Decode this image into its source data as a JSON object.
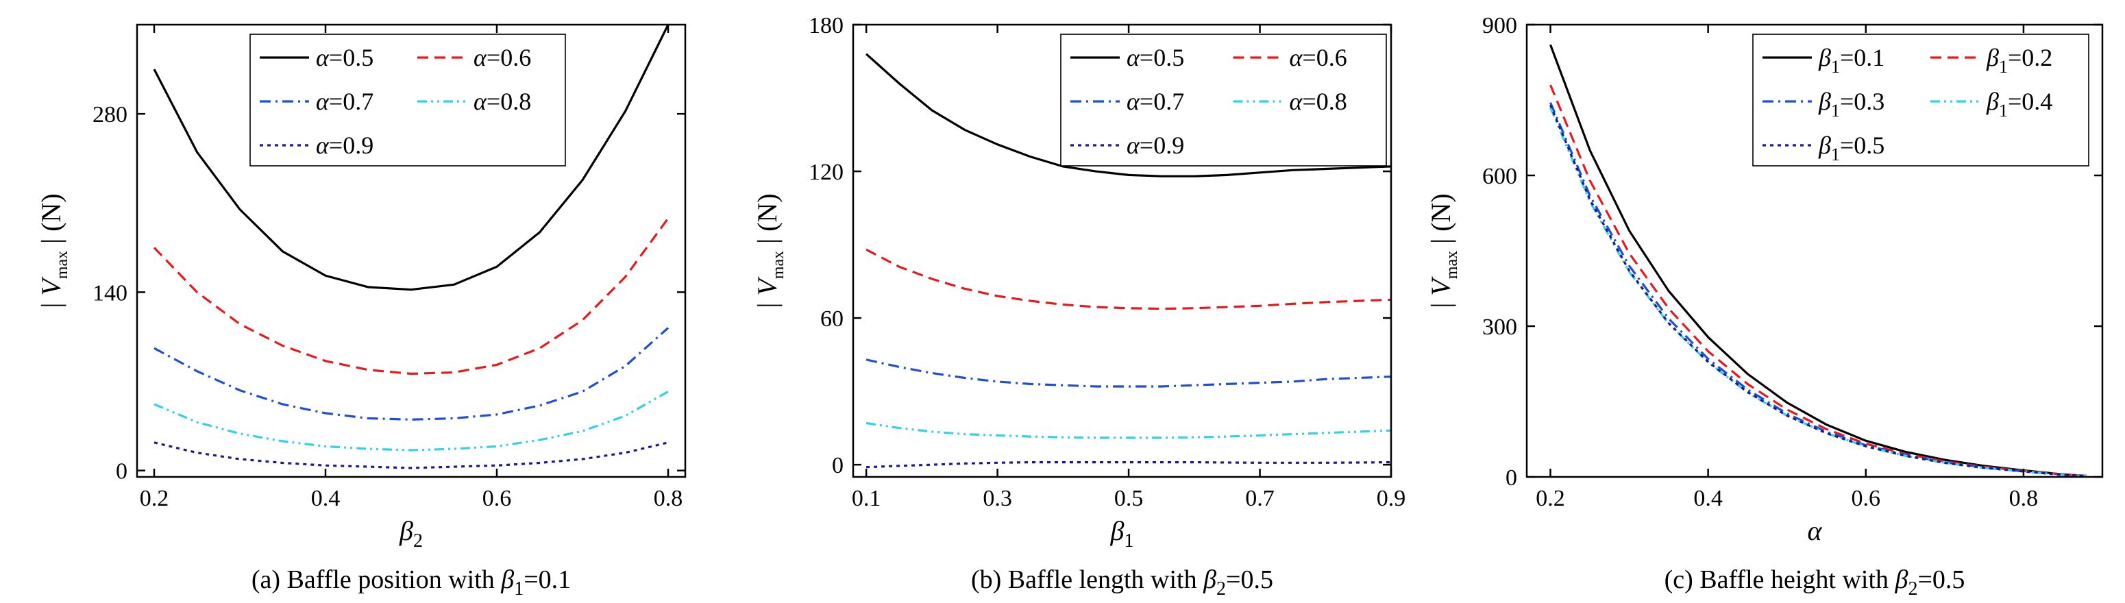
{
  "chart_data": [
    {
      "type": "line",
      "caption": {
        "prefix": "(a) Baffle position with ",
        "sym": "β",
        "sub": "1",
        "suffix": "=0.1"
      },
      "ylabel": {
        "pre": "| ",
        "sym": "V",
        "sub": "max",
        "post": " | (N)"
      },
      "xlabel": {
        "sym": "β",
        "sub": "2"
      },
      "xlim": [
        0.18,
        0.82
      ],
      "ylim": [
        -5,
        350
      ],
      "xticks": [
        0.2,
        0.4,
        0.6,
        0.8
      ],
      "xtick_labels": [
        "0.2",
        "0.4",
        "0.6",
        "0.8"
      ],
      "yticks": [
        0,
        140,
        280
      ],
      "ytick_labels": [
        "0",
        "140",
        "280"
      ],
      "legend": {
        "placement": "top-right",
        "columns": 2
      },
      "series": [
        {
          "name": {
            "sym": "α",
            "eq": "=0.5"
          },
          "color": "#000000",
          "dash": "solid",
          "x": [
            0.2,
            0.25,
            0.3,
            0.35,
            0.4,
            0.45,
            0.5,
            0.55,
            0.6,
            0.65,
            0.7,
            0.75,
            0.8
          ],
          "y": [
            315,
            250,
            205,
            172,
            153,
            144,
            142,
            146,
            160,
            187,
            228,
            282,
            350
          ]
        },
        {
          "name": {
            "sym": "α",
            "eq": "=0.6"
          },
          "color": "#e41a1c",
          "dash": "dash",
          "x": [
            0.2,
            0.25,
            0.3,
            0.35,
            0.4,
            0.45,
            0.5,
            0.55,
            0.6,
            0.65,
            0.7,
            0.75,
            0.8
          ],
          "y": [
            175,
            140,
            115,
            98,
            86,
            79,
            76,
            77,
            83,
            96,
            118,
            152,
            198
          ]
        },
        {
          "name": {
            "sym": "α",
            "eq": "=0.7"
          },
          "color": "#1f4fd0",
          "dash": "dashdot",
          "x": [
            0.2,
            0.25,
            0.3,
            0.35,
            0.4,
            0.45,
            0.5,
            0.55,
            0.6,
            0.65,
            0.7,
            0.75,
            0.8
          ],
          "y": [
            96,
            78,
            63,
            52,
            45,
            41,
            40,
            41,
            44,
            51,
            62,
            82,
            112
          ]
        },
        {
          "name": {
            "sym": "α",
            "eq": "=0.8"
          },
          "color": "#33d1e6",
          "dash": "dashdotdot",
          "x": [
            0.2,
            0.25,
            0.3,
            0.35,
            0.4,
            0.45,
            0.5,
            0.55,
            0.6,
            0.65,
            0.7,
            0.75,
            0.8
          ],
          "y": [
            52,
            38,
            29,
            23,
            19,
            17,
            16,
            17,
            19,
            24,
            31,
            43,
            62
          ]
        },
        {
          "name": {
            "sym": "α",
            "eq": "=0.9"
          },
          "color": "#1a1a8c",
          "dash": "dot",
          "x": [
            0.2,
            0.25,
            0.3,
            0.35,
            0.4,
            0.45,
            0.5,
            0.55,
            0.6,
            0.65,
            0.7,
            0.75,
            0.8
          ],
          "y": [
            22,
            14,
            9,
            6,
            4,
            3,
            2,
            3,
            4,
            6,
            9,
            14,
            22
          ]
        }
      ]
    },
    {
      "type": "line",
      "caption": {
        "prefix": "(b) Baffle length with ",
        "sym": "β",
        "sub": "2",
        "suffix": "=0.5"
      },
      "ylabel": {
        "pre": "| ",
        "sym": "V",
        "sub": "max",
        "post": " | (N)"
      },
      "xlabel": {
        "sym": "β",
        "sub": "1"
      },
      "xlim": [
        0.08,
        0.9
      ],
      "ylim": [
        -5,
        180
      ],
      "xticks": [
        0.1,
        0.3,
        0.5,
        0.7,
        0.9
      ],
      "xtick_labels": [
        "0.1",
        "0.3",
        "0.5",
        "0.7",
        "0.9"
      ],
      "yticks": [
        0,
        60,
        120,
        180
      ],
      "ytick_labels": [
        "0",
        "60",
        "120",
        "180"
      ],
      "legend": {
        "placement": "top-right",
        "columns": 2
      },
      "series": [
        {
          "name": {
            "sym": "α",
            "eq": "=0.5"
          },
          "color": "#000000",
          "dash": "solid",
          "x": [
            0.1,
            0.15,
            0.2,
            0.25,
            0.3,
            0.35,
            0.4,
            0.45,
            0.5,
            0.55,
            0.6,
            0.65,
            0.7,
            0.75,
            0.8,
            0.85,
            0.9
          ],
          "y": [
            168,
            156,
            145,
            137,
            131,
            126,
            122,
            120,
            118.5,
            118,
            118,
            118.5,
            119.5,
            120.5,
            121,
            121.5,
            122
          ]
        },
        {
          "name": {
            "sym": "α",
            "eq": "=0.6"
          },
          "color": "#e41a1c",
          "dash": "dash",
          "x": [
            0.1,
            0.15,
            0.2,
            0.25,
            0.3,
            0.35,
            0.4,
            0.45,
            0.5,
            0.55,
            0.6,
            0.65,
            0.7,
            0.75,
            0.8,
            0.85,
            0.9
          ],
          "y": [
            88,
            81,
            76,
            72,
            69,
            67,
            65.5,
            64.5,
            64,
            63.8,
            64,
            64.5,
            65,
            65.8,
            66.5,
            67,
            67.5
          ]
        },
        {
          "name": {
            "sym": "α",
            "eq": "=0.7"
          },
          "color": "#1f4fd0",
          "dash": "dashdot",
          "x": [
            0.1,
            0.15,
            0.2,
            0.25,
            0.3,
            0.35,
            0.4,
            0.45,
            0.5,
            0.55,
            0.6,
            0.65,
            0.7,
            0.75,
            0.8,
            0.85,
            0.9
          ],
          "y": [
            43,
            40,
            37.5,
            35.5,
            34,
            33,
            32.5,
            32,
            32,
            32,
            32.5,
            33,
            33.5,
            34,
            35,
            35.5,
            36
          ]
        },
        {
          "name": {
            "sym": "α",
            "eq": "=0.8"
          },
          "color": "#33d1e6",
          "dash": "dashdotdot",
          "x": [
            0.1,
            0.15,
            0.2,
            0.25,
            0.3,
            0.35,
            0.4,
            0.45,
            0.5,
            0.55,
            0.6,
            0.65,
            0.7,
            0.75,
            0.8,
            0.85,
            0.9
          ],
          "y": [
            17,
            15,
            13.5,
            12.5,
            12,
            11.5,
            11.2,
            11,
            11,
            11,
            11.2,
            11.5,
            12,
            12.5,
            13,
            13.5,
            14
          ]
        },
        {
          "name": {
            "sym": "α",
            "eq": "=0.9"
          },
          "color": "#1a1a8c",
          "dash": "dot",
          "x": [
            0.1,
            0.15,
            0.2,
            0.25,
            0.3,
            0.35,
            0.4,
            0.45,
            0.5,
            0.55,
            0.6,
            0.65,
            0.7,
            0.75,
            0.8,
            0.85,
            0.9
          ],
          "y": [
            -1,
            -0.5,
            0,
            0.5,
            0.8,
            1,
            1,
            1,
            1,
            1,
            1,
            0.9,
            0.8,
            0.8,
            0.8,
            0.9,
            1
          ]
        }
      ]
    },
    {
      "type": "line",
      "caption": {
        "prefix": "(c) Baffle height with ",
        "sym": "β",
        "sub": "2",
        "suffix": "=0.5"
      },
      "ylabel": {
        "pre": "| ",
        "sym": "V",
        "sub": "max",
        "post": " | (N)"
      },
      "xlabel": {
        "sym": "α",
        "sub": ""
      },
      "xlim": [
        0.17,
        0.9
      ],
      "ylim": [
        0,
        900
      ],
      "xticks": [
        0.2,
        0.4,
        0.6,
        0.8
      ],
      "xtick_labels": [
        "0.2",
        "0.4",
        "0.6",
        "0.8"
      ],
      "yticks": [
        0,
        300,
        600,
        900
      ],
      "ytick_labels": [
        "0",
        "300",
        "600",
        "900"
      ],
      "legend": {
        "placement": "top-right",
        "columns": 2
      },
      "series": [
        {
          "name": {
            "sym": "β",
            "sub": "1",
            "eq": "=0.1"
          },
          "color": "#000000",
          "dash": "solid",
          "x": [
            0.2,
            0.25,
            0.3,
            0.35,
            0.4,
            0.45,
            0.5,
            0.55,
            0.6,
            0.65,
            0.7,
            0.75,
            0.8,
            0.85,
            0.88
          ],
          "y": [
            860,
            650,
            490,
            370,
            278,
            205,
            148,
            104,
            72,
            50,
            34,
            22,
            13,
            5,
            2
          ]
        },
        {
          "name": {
            "sym": "β",
            "sub": "1",
            "eq": "=0.2"
          },
          "color": "#e41a1c",
          "dash": "dash",
          "x": [
            0.2,
            0.25,
            0.3,
            0.35,
            0.4,
            0.45,
            0.5,
            0.55,
            0.6,
            0.65,
            0.7,
            0.75,
            0.8,
            0.85,
            0.88
          ],
          "y": [
            780,
            590,
            445,
            335,
            250,
            185,
            134,
            95,
            66,
            46,
            31,
            20,
            12,
            5,
            2
          ]
        },
        {
          "name": {
            "sym": "β",
            "sub": "1",
            "eq": "=0.3"
          },
          "color": "#1f4fd0",
          "dash": "dashdot",
          "x": [
            0.2,
            0.25,
            0.3,
            0.35,
            0.4,
            0.45,
            0.5,
            0.55,
            0.6,
            0.65,
            0.7,
            0.75,
            0.8,
            0.85,
            0.88
          ],
          "y": [
            745,
            560,
            420,
            315,
            235,
            174,
            126,
            90,
            63,
            44,
            29,
            19,
            11,
            4,
            2
          ]
        },
        {
          "name": {
            "sym": "β",
            "sub": "1",
            "eq": "=0.4"
          },
          "color": "#33d1e6",
          "dash": "dashdotdot",
          "x": [
            0.2,
            0.25,
            0.3,
            0.35,
            0.4,
            0.45,
            0.5,
            0.55,
            0.6,
            0.65,
            0.7,
            0.75,
            0.8,
            0.85,
            0.88
          ],
          "y": [
            735,
            548,
            408,
            305,
            228,
            168,
            122,
            87,
            61,
            42,
            28,
            18,
            11,
            4,
            2
          ]
        },
        {
          "name": {
            "sym": "β",
            "sub": "1",
            "eq": "=0.5"
          },
          "color": "#1a1a8c",
          "dash": "dot",
          "x": [
            0.2,
            0.25,
            0.3,
            0.35,
            0.4,
            0.45,
            0.5,
            0.55,
            0.6,
            0.65,
            0.7,
            0.75,
            0.8,
            0.85,
            0.88
          ],
          "y": [
            740,
            552,
            410,
            306,
            229,
            169,
            122,
            87,
            61,
            42,
            28,
            18,
            11,
            4,
            2
          ]
        }
      ]
    }
  ]
}
